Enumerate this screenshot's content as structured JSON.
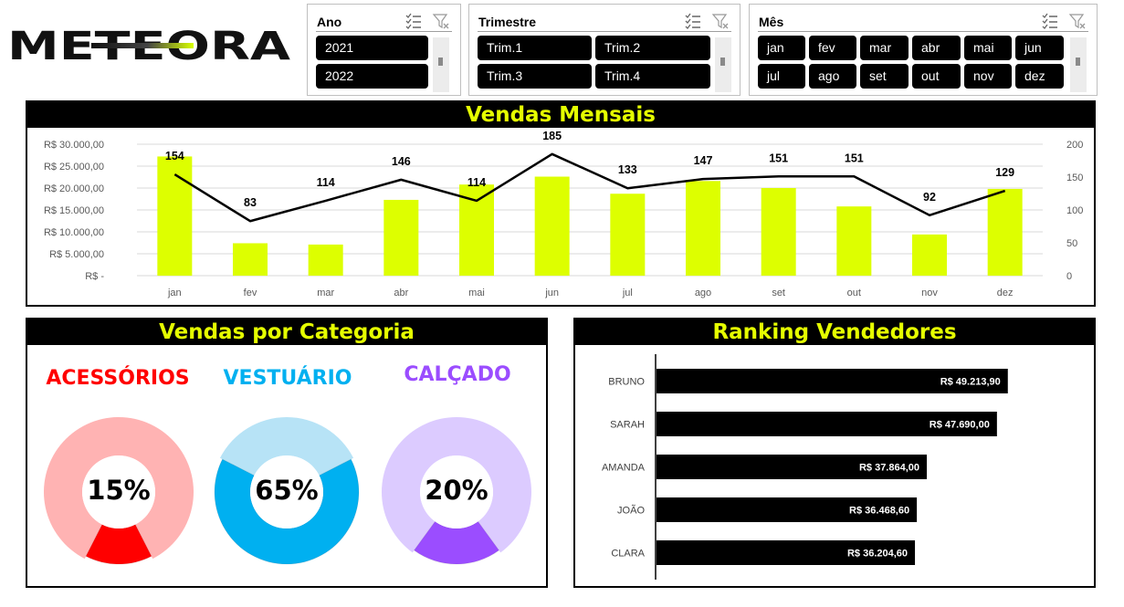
{
  "brand": {
    "name": "METEORA"
  },
  "slicers": {
    "ano": {
      "title": "Ano",
      "items": [
        "2021",
        "2022"
      ]
    },
    "trimestre": {
      "title": "Trimestre",
      "items": [
        "Trim.1",
        "Trim.2",
        "Trim.3",
        "Trim.4"
      ]
    },
    "mes": {
      "title": "Mês",
      "items": [
        "jan",
        "fev",
        "mar",
        "abr",
        "mai",
        "jun",
        "jul",
        "ago",
        "set",
        "out",
        "nov",
        "dez"
      ]
    }
  },
  "monthly": {
    "title": "Vendas Mensais",
    "y_tick_labels": [
      "R$ 30.000,00",
      "R$ 25.000,00",
      "R$ 20.000,00",
      "R$ 15.000,00",
      "R$ 10.000,00",
      "R$ 5.000,00",
      "R$ -"
    ],
    "y2_tick_labels": [
      "200",
      "150",
      "100",
      "50",
      "0"
    ]
  },
  "categories": {
    "title": "Vendas por Categoria",
    "items": [
      {
        "name": "ACESSÓRIOS",
        "pct_label": "15%",
        "share": 0.15,
        "color": "#ff0000",
        "light": "#ffb3b3"
      },
      {
        "name": "VESTUÁRIO",
        "pct_label": "65%",
        "share": 0.65,
        "color": "#00b0f0",
        "light": "#b7e3f6"
      },
      {
        "name": "CALÇADO",
        "pct_label": "20%",
        "share": 0.2,
        "color": "#9b4dff",
        "light": "#dccbff"
      }
    ]
  },
  "ranking": {
    "title": "Ranking Vendedores",
    "items": [
      {
        "name": "BRUNO",
        "label": "R$ 49.213,90",
        "value": 49213.9
      },
      {
        "name": "SARAH",
        "label": "R$ 47.690,00",
        "value": 47690.0
      },
      {
        "name": "AMANDA",
        "label": "R$ 37.864,00",
        "value": 37864.0
      },
      {
        "name": "JOÃO",
        "label": "R$ 36.468,60",
        "value": 36468.6
      },
      {
        "name": "CLARA",
        "label": "R$ 36.204,60",
        "value": 36204.6
      }
    ]
  },
  "colors": {
    "accent": "#e5ff00",
    "bar": "#ddff00",
    "line": "#000000"
  },
  "chart_data": {
    "type": "bar",
    "title": "Vendas Mensais",
    "categories": [
      "jan",
      "fev",
      "mar",
      "abr",
      "mai",
      "jun",
      "jul",
      "ago",
      "set",
      "out",
      "nov",
      "dez"
    ],
    "series": [
      {
        "type": "bar",
        "axis": "left",
        "values": [
          27200,
          7400,
          7100,
          17300,
          20800,
          22600,
          18700,
          21600,
          20000,
          15800,
          9400,
          19800
        ]
      },
      {
        "type": "line",
        "axis": "right",
        "values": [
          154,
          83,
          114,
          146,
          114,
          185,
          133,
          147,
          151,
          151,
          92,
          129
        ]
      }
    ],
    "ylim": [
      0,
      30000
    ],
    "y2lim": [
      0,
      200
    ],
    "grid": true
  }
}
